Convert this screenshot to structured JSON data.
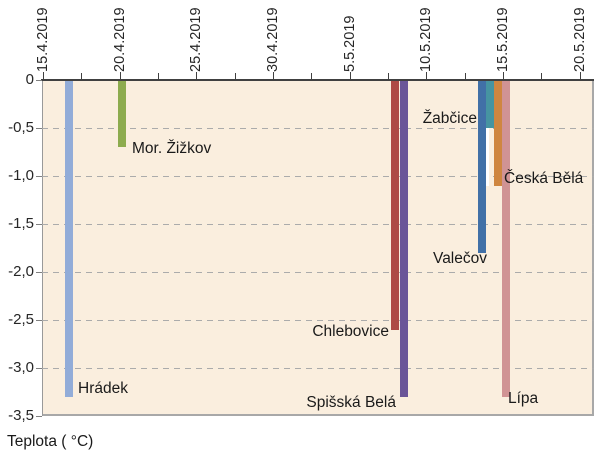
{
  "chart_data": {
    "type": "bar",
    "title": "",
    "ylabel": "Teplota ( °C)",
    "x_axis": {
      "start": "15.4.2019",
      "end": "20.5.2019",
      "major_tick_interval_days": 5,
      "minor_tick_interval_days": 2.5,
      "span_days": 35
    },
    "x_ticks": [
      "15.4.2019",
      "20.4.2019",
      "25.4.2019",
      "30.4.2019",
      "5.5.2019",
      "10.5.2019",
      "15.5.2019",
      "20.5.2019"
    ],
    "y_ticks": [
      "0",
      "-0,5",
      "-1,0",
      "-1,5",
      "-2,0",
      "-2,5",
      "-3,0",
      "-3,5"
    ],
    "ylim": [
      0,
      -3.5
    ],
    "grid": "horizontal-dashed",
    "legend": "none, bars labeled inline",
    "plot_bg": "#faeede",
    "bars": [
      {
        "id": "hradek",
        "label": "Hrádek",
        "date": "17.4.2019",
        "day_offset": 1.7,
        "value": -3.3,
        "color": "#92acd8"
      },
      {
        "id": "mor-zizkov",
        "label": "Mor. Žižkov",
        "date": "20.4.2019",
        "day_offset": 5.15,
        "value": -0.7,
        "color": "#8dab4e"
      },
      {
        "id": "chlebovice",
        "label": "Chlebovice",
        "date": "8.5.2019",
        "day_offset": 22.95,
        "value": -2.6,
        "color": "#ae4a45"
      },
      {
        "id": "spisska-bela",
        "label": "Spišská Belá",
        "date": "9.5.2019",
        "day_offset": 23.55,
        "value": -3.3,
        "color": "#6a5598"
      },
      {
        "id": "valecov",
        "label": "Valečov",
        "date": "13.5.2019",
        "day_offset": 28.65,
        "value": -1.8,
        "color": "#4170a7"
      },
      {
        "id": "zabcice",
        "label": "Žabčice",
        "date": "14.5.2019",
        "day_offset": 29.17,
        "value": -0.5,
        "color": "#4694a1"
      },
      {
        "id": "ceska-bela",
        "label": "Česká Bělá",
        "date": "14.5.2019",
        "day_offset": 29.69,
        "value": -1.1,
        "color": "#cf8640"
      },
      {
        "id": "lipa",
        "label": "Lípa",
        "date": "15.5.2019",
        "day_offset": 30.21,
        "value": -3.3,
        "color": "#d09394"
      }
    ]
  }
}
